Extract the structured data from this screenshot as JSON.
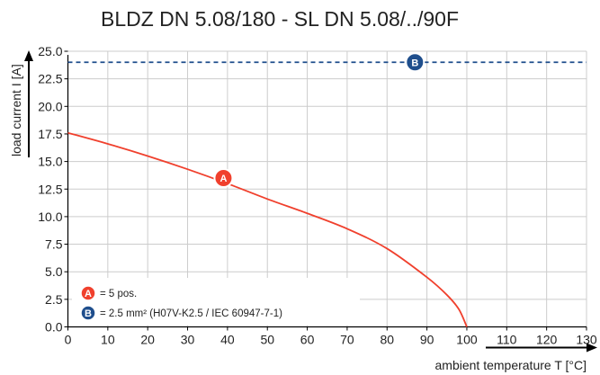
{
  "chart_data": {
    "type": "line",
    "title": "BLDZ DN 5.08/180 - SL DN 5.08/../90F",
    "xlabel": "ambient temperature T [°C]",
    "ylabel": "load current I [A]",
    "xlim": [
      0,
      130
    ],
    "ylim": [
      0,
      25
    ],
    "x_ticks": [
      "0",
      "10",
      "20",
      "30",
      "40",
      "50",
      "60",
      "70",
      "80",
      "90",
      "100",
      "110",
      "120",
      "130"
    ],
    "y_ticks": [
      "0.0",
      "2.5",
      "5.0",
      "7.5",
      "10.0",
      "12.5",
      "15.0",
      "17.5",
      "20.0",
      "22.5",
      "25.0"
    ],
    "grid": true,
    "colors": {
      "A": "#f0402d",
      "B": "#1f4e8c",
      "grid": "#cccccc"
    },
    "series": [
      {
        "id": "A",
        "style": "solid",
        "x": [
          0,
          10,
          20,
          30,
          40,
          50,
          60,
          70,
          80,
          90,
          95,
          98,
          100
        ],
        "y": [
          17.6,
          16.6,
          15.5,
          14.3,
          13.0,
          11.6,
          10.3,
          8.9,
          7.1,
          4.5,
          2.9,
          1.6,
          0.0
        ],
        "marker": {
          "label": "A",
          "x": 39,
          "y": 13.5
        }
      },
      {
        "id": "B",
        "style": "dashed",
        "x": [
          0,
          130
        ],
        "y": [
          24,
          24
        ],
        "marker": {
          "label": "B",
          "x": 87,
          "y": 24
        }
      }
    ],
    "legend": {
      "position": "bottom-left",
      "entries": [
        {
          "marker": "A",
          "text": "= 5 pos."
        },
        {
          "marker": "B",
          "text": "= 2.5 mm² (H07V-K2.5 / IEC 60947-7-1)"
        }
      ]
    }
  }
}
